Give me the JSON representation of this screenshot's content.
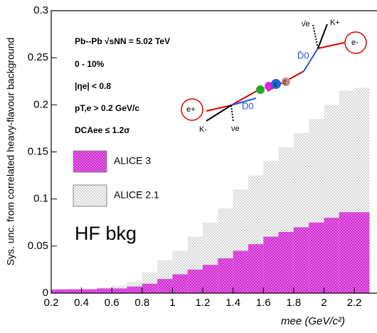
{
  "chart_data": {
    "type": "histogram",
    "y_label": "Sys. unc. from correlated heavy-flavour background",
    "x_label": "mee (GeV/c²)",
    "bins": [
      0.2,
      0.3,
      0.4,
      0.5,
      0.6,
      0.7,
      0.8,
      0.9,
      1.0,
      1.1,
      1.2,
      1.3,
      1.4,
      1.5,
      1.6,
      1.7,
      1.8,
      1.9,
      2.0,
      2.1,
      2.2,
      2.3
    ],
    "series": [
      {
        "name": "ALICE 2.1",
        "color": "#9a9a9a",
        "values": [
          0.004,
          0.005,
          0.005,
          0.006,
          0.008,
          0.012,
          0.022,
          0.035,
          0.045,
          0.06,
          0.075,
          0.09,
          0.11,
          0.125,
          0.14,
          0.155,
          0.17,
          0.185,
          0.2,
          0.215,
          0.218
        ]
      },
      {
        "name": "ALICE 3",
        "color": "#e000e0",
        "values": [
          0.004,
          0.004,
          0.004,
          0.005,
          0.005,
          0.007,
          0.01,
          0.015,
          0.02,
          0.025,
          0.03,
          0.037,
          0.045,
          0.052,
          0.06,
          0.065,
          0.07,
          0.075,
          0.08,
          0.086,
          0.086
        ]
      }
    ],
    "xlim": [
      0.2,
      2.35
    ],
    "ylim": [
      0,
      0.3
    ],
    "xticks": [
      0.2,
      0.4,
      0.6,
      0.8,
      1,
      1.2,
      1.4,
      1.6,
      1.8,
      2,
      2.2
    ],
    "yticks": [
      0,
      0.05,
      0.1,
      0.15,
      0.2,
      0.25,
      0.3
    ],
    "annotations": [
      "Pb--Pb √sNN = 5.02 TeV",
      "0 - 10%",
      "|ηe| < 0.8",
      "pT,e > 0.2 GeV/c",
      "DCAee ≤ 1.2σ"
    ],
    "note": "HF bkg",
    "diagram_labels": [
      "K+",
      "ν̄e",
      "e-",
      "D̄0",
      "D0",
      "e+",
      "K-",
      "νe",
      "c",
      "c̄"
    ]
  }
}
